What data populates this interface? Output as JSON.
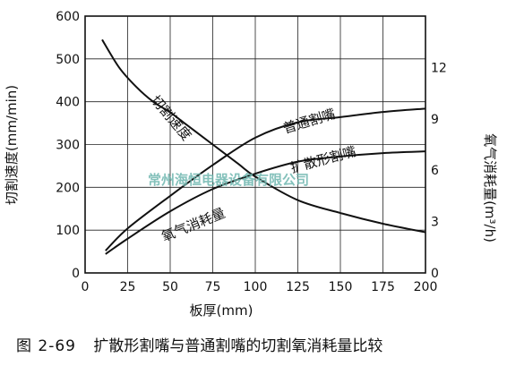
{
  "chart_data": {
    "type": "line",
    "xlabel": "板厚(mm)",
    "ylabel_left": "切割速度(mm/min)",
    "ylabel_right": "氧气消耗量(m³/h)",
    "xlim": [
      0,
      200
    ],
    "ylim_left": [
      0,
      600
    ],
    "ylim_right": [
      0,
      15
    ],
    "x_ticks": [
      0,
      25,
      50,
      75,
      100,
      125,
      150,
      175,
      200
    ],
    "y_ticks_left": [
      0,
      100,
      200,
      300,
      400,
      500,
      600
    ],
    "y_ticks_right": [
      0,
      3,
      6,
      9,
      12
    ],
    "grid": true,
    "series": [
      {
        "name": "切割速度",
        "axis": "left",
        "x": [
          10,
          20,
          30,
          40,
          50,
          60,
          75,
          90,
          100,
          125,
          150,
          175,
          200
        ],
        "values": [
          545,
          480,
          435,
          400,
          375,
          345,
          300,
          255,
          225,
          170,
          140,
          115,
          95
        ]
      },
      {
        "name": "普通割嘴",
        "axis": "right",
        "x": [
          12,
          25,
          50,
          75,
          100,
          125,
          150,
          175,
          200
        ],
        "values": [
          1.3,
          2.6,
          4.5,
          6.3,
          7.9,
          8.8,
          9.1,
          9.4,
          9.6
        ]
      },
      {
        "name": "扩散形割嘴",
        "axis": "right",
        "x": [
          12,
          25,
          50,
          75,
          100,
          125,
          150,
          175,
          200
        ],
        "values": [
          1.1,
          2.0,
          3.6,
          4.9,
          5.8,
          6.5,
          6.8,
          7.0,
          7.1
        ]
      }
    ],
    "annotations": [
      "氧气消耗量"
    ]
  },
  "caption": {
    "figure_number": "图 2-69",
    "text": "扩散形割嘴与普通割嘴的切割氧消耗量比较"
  },
  "watermark": "常州海恒电器设备有限公司"
}
